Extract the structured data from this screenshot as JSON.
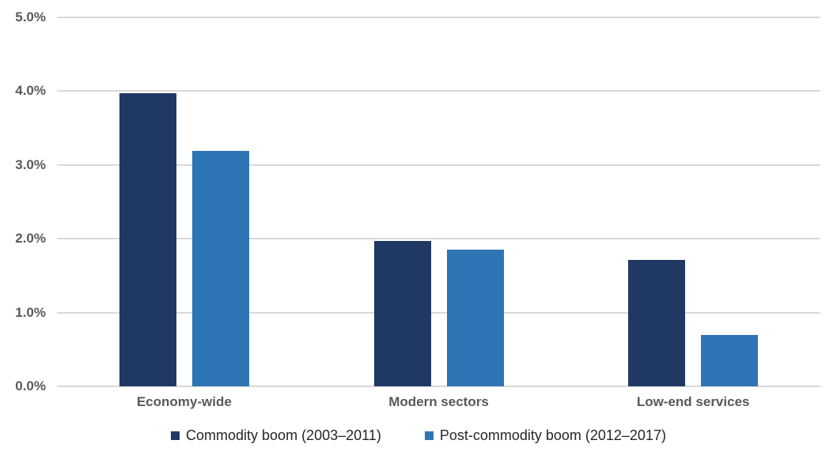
{
  "chart_data": {
    "type": "bar",
    "title": "",
    "xlabel": "",
    "ylabel": "",
    "ylim": [
      0,
      5
    ],
    "grid": true,
    "legend_position": "bottom",
    "ytick_labels": [
      "0.0%",
      "1.0%",
      "2.0%",
      "3.0%",
      "4.0%",
      "5.0%"
    ],
    "categories": [
      "Economy-wide",
      "Modern sectors",
      "Low-end services"
    ],
    "series": [
      {
        "name": "Commodity boom (2003–2011)",
        "color": "#203864",
        "values": [
          3.97,
          1.97,
          1.71
        ]
      },
      {
        "name": "Post-commodity boom (2012–2017)",
        "color": "#2E75B6",
        "values": [
          3.19,
          1.85,
          0.7
        ]
      }
    ],
    "colors": {
      "gridline": "#d9d9d9",
      "axis_label": "#595959",
      "legend_text": "#262626",
      "background": "#ffffff"
    }
  }
}
